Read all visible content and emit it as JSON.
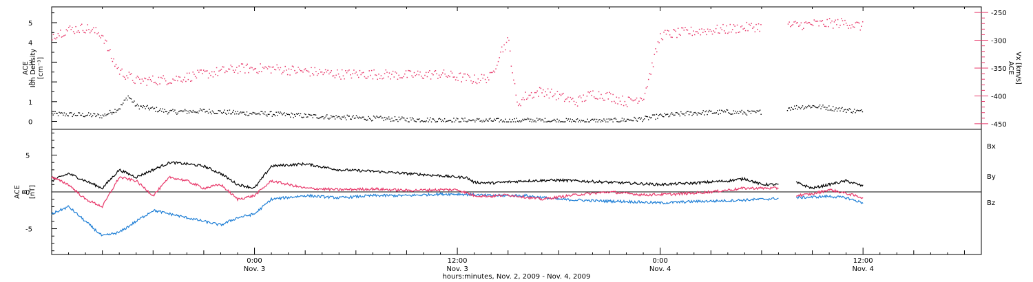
{
  "colors": {
    "density": "#000000",
    "vx": "#e8386a",
    "bx": "#000000",
    "by": "#1f7fd6",
    "bz": "#e8386a",
    "axis": "#000000"
  },
  "footer": {
    "xlabel": "hours:minutes, Nov. 2, 2009 - Nov. 4, 2009"
  },
  "chart_data": [
    {
      "type": "scatter",
      "panel": "solar-wind",
      "ylabel_left": [
        "ACE",
        "Ion Density",
        "[cm⁻³]"
      ],
      "ylabel_right": [
        "ACE",
        "Vx [km/s]"
      ],
      "ylim_left": [
        -0.4,
        5.8
      ],
      "yticks_left": [
        0,
        1,
        2,
        3,
        4,
        5
      ],
      "ylim_right": [
        -460,
        -240
      ],
      "yticks_right": [
        -250,
        -300,
        -350,
        -400,
        -450
      ],
      "xlim_hours": [
        0,
        55
      ],
      "data_gaps_hours": [
        [
          42,
          43.5
        ]
      ],
      "series": [
        {
          "axis": "left",
          "values_hours_density": [
            [
              0,
              0.4
            ],
            [
              2,
              0.35
            ],
            [
              3,
              0.3
            ],
            [
              4,
              0.7
            ],
            [
              4.5,
              1.3
            ],
            [
              5,
              0.8
            ],
            [
              7,
              0.5
            ],
            [
              9,
              0.55
            ],
            [
              11,
              0.45
            ],
            [
              13,
              0.4
            ],
            [
              15,
              0.3
            ],
            [
              18,
              0.2
            ],
            [
              21,
              0.12
            ],
            [
              24,
              0.08
            ],
            [
              27,
              0.05
            ],
            [
              28,
              0.08
            ],
            [
              30,
              0.05
            ],
            [
              33,
              0.05
            ],
            [
              35,
              0.15
            ],
            [
              36,
              0.3
            ],
            [
              38,
              0.45
            ],
            [
              40,
              0.5
            ],
            [
              41.5,
              0.45
            ],
            [
              43.5,
              0.7
            ],
            [
              45,
              0.8
            ],
            [
              47,
              0.6
            ],
            [
              48,
              0.5
            ]
          ]
        },
        {
          "axis": "right",
          "values_hours_vx": [
            [
              0,
              -290
            ],
            [
              1,
              -280
            ],
            [
              2,
              -277
            ],
            [
              3,
              -290
            ],
            [
              3.5,
              -330
            ],
            [
              4,
              -355
            ],
            [
              5,
              -372
            ],
            [
              7,
              -370
            ],
            [
              9,
              -360
            ],
            [
              11,
              -350
            ],
            [
              13,
              -350
            ],
            [
              15,
              -355
            ],
            [
              17,
              -360
            ],
            [
              19,
              -360
            ],
            [
              21,
              -362
            ],
            [
              23,
              -360
            ],
            [
              25,
              -370
            ],
            [
              26,
              -365
            ],
            [
              26.5,
              -320
            ],
            [
              27,
              -300
            ],
            [
              27.5,
              -415
            ],
            [
              28,
              -400
            ],
            [
              29,
              -390
            ],
            [
              30,
              -400
            ],
            [
              31,
              -410
            ],
            [
              32,
              -395
            ],
            [
              33,
              -400
            ],
            [
              34,
              -410
            ],
            [
              35,
              -400
            ],
            [
              36,
              -290
            ],
            [
              38,
              -283
            ],
            [
              40,
              -279
            ],
            [
              41.5,
              -275
            ],
            [
              43.5,
              -273
            ],
            [
              45,
              -270
            ],
            [
              47,
              -268
            ],
            [
              48,
              -275
            ]
          ]
        }
      ]
    },
    {
      "type": "line",
      "panel": "magnetic-field",
      "ylabel_left": [
        "ACE",
        "B",
        "[nT]"
      ],
      "ylim": [
        -8.5,
        8.5
      ],
      "yticks": [
        -5,
        0,
        5
      ],
      "xlim_hours": [
        0,
        55
      ],
      "xtick_labels": [
        {
          "hours": 12,
          "time": "0:00",
          "day": "Nov. 3"
        },
        {
          "hours": 24,
          "time": "12:00",
          "day": "Nov. 3"
        },
        {
          "hours": 36,
          "time": "0:00",
          "day": "Nov. 4"
        },
        {
          "hours": 48,
          "time": "12:00",
          "day": "Nov. 4"
        }
      ],
      "data_gaps_hours": [
        [
          43,
          44
        ]
      ],
      "series": [
        {
          "name": "Bx",
          "points_hours": [
            [
              0,
              1.5
            ],
            [
              1,
              2.5
            ],
            [
              2,
              1.5
            ],
            [
              3,
              0.5
            ],
            [
              4,
              3
            ],
            [
              5,
              2
            ],
            [
              6,
              3
            ],
            [
              7,
              4
            ],
            [
              8,
              3.8
            ],
            [
              9,
              3.5
            ],
            [
              10,
              2.5
            ],
            [
              11,
              1
            ],
            [
              12,
              0.5
            ],
            [
              13,
              3.5
            ],
            [
              15,
              3.8
            ],
            [
              17,
              3
            ],
            [
              19,
              2.8
            ],
            [
              21,
              2.5
            ],
            [
              23,
              2.2
            ],
            [
              24,
              2
            ],
            [
              24.5,
              2
            ],
            [
              25,
              1.3
            ],
            [
              26,
              1.2
            ],
            [
              28,
              1.5
            ],
            [
              30,
              1.6
            ],
            [
              32,
              1.4
            ],
            [
              34,
              1.2
            ],
            [
              36,
              1
            ],
            [
              38,
              1.2
            ],
            [
              40,
              1.5
            ],
            [
              41,
              1.8
            ],
            [
              42,
              1
            ],
            [
              43,
              1
            ],
            [
              44,
              1.3
            ],
            [
              45,
              0.5
            ],
            [
              46,
              1
            ],
            [
              47,
              1.5
            ],
            [
              48,
              0.8
            ]
          ]
        },
        {
          "name": "By",
          "points_hours": [
            [
              0,
              -3
            ],
            [
              1,
              -2
            ],
            [
              2,
              -4
            ],
            [
              3,
              -6
            ],
            [
              4,
              -5.5
            ],
            [
              5,
              -4
            ],
            [
              6,
              -2.5
            ],
            [
              7,
              -3
            ],
            [
              8,
              -3.5
            ],
            [
              9,
              -4
            ],
            [
              10,
              -4.5
            ],
            [
              11,
              -3.5
            ],
            [
              12,
              -3
            ],
            [
              13,
              -1
            ],
            [
              15,
              -0.5
            ],
            [
              17,
              -0.8
            ],
            [
              19,
              -0.5
            ],
            [
              21,
              -0.5
            ],
            [
              23,
              -0.3
            ],
            [
              24,
              -0.3
            ],
            [
              26,
              -0.5
            ],
            [
              28,
              -0.5
            ],
            [
              30,
              -1
            ],
            [
              32,
              -1.2
            ],
            [
              34,
              -1.3
            ],
            [
              36,
              -1.5
            ],
            [
              38,
              -1.3
            ],
            [
              40,
              -1.2
            ],
            [
              42,
              -1
            ],
            [
              44,
              -0.8
            ],
            [
              46,
              -0.6
            ],
            [
              47,
              -0.8
            ],
            [
              48,
              -1.5
            ]
          ]
        },
        {
          "name": "Bz",
          "points_hours": [
            [
              0,
              2
            ],
            [
              1,
              1
            ],
            [
              2,
              -1
            ],
            [
              3,
              -2
            ],
            [
              4,
              2
            ],
            [
              5,
              1.5
            ],
            [
              6,
              -0.5
            ],
            [
              7,
              2
            ],
            [
              8,
              1.5
            ],
            [
              9,
              0.5
            ],
            [
              10,
              1
            ],
            [
              11,
              -1
            ],
            [
              12,
              -0.5
            ],
            [
              13,
              1.5
            ],
            [
              15,
              0.5
            ],
            [
              17,
              0.3
            ],
            [
              19,
              0.4
            ],
            [
              21,
              0.2
            ],
            [
              23,
              0.3
            ],
            [
              24,
              0.3
            ],
            [
              25,
              -0.5
            ],
            [
              26,
              -0.6
            ],
            [
              27,
              -0.4
            ],
            [
              29,
              -1
            ],
            [
              31,
              -0.4
            ],
            [
              33,
              0
            ],
            [
              35,
              -0.4
            ],
            [
              37,
              -0.3
            ],
            [
              39,
              0
            ],
            [
              41,
              0.5
            ],
            [
              43,
              0.5
            ],
            [
              44,
              -0.5
            ],
            [
              45,
              -0.3
            ],
            [
              46,
              0.3
            ],
            [
              47,
              -0.2
            ],
            [
              48,
              -0.8
            ]
          ]
        }
      ]
    }
  ]
}
